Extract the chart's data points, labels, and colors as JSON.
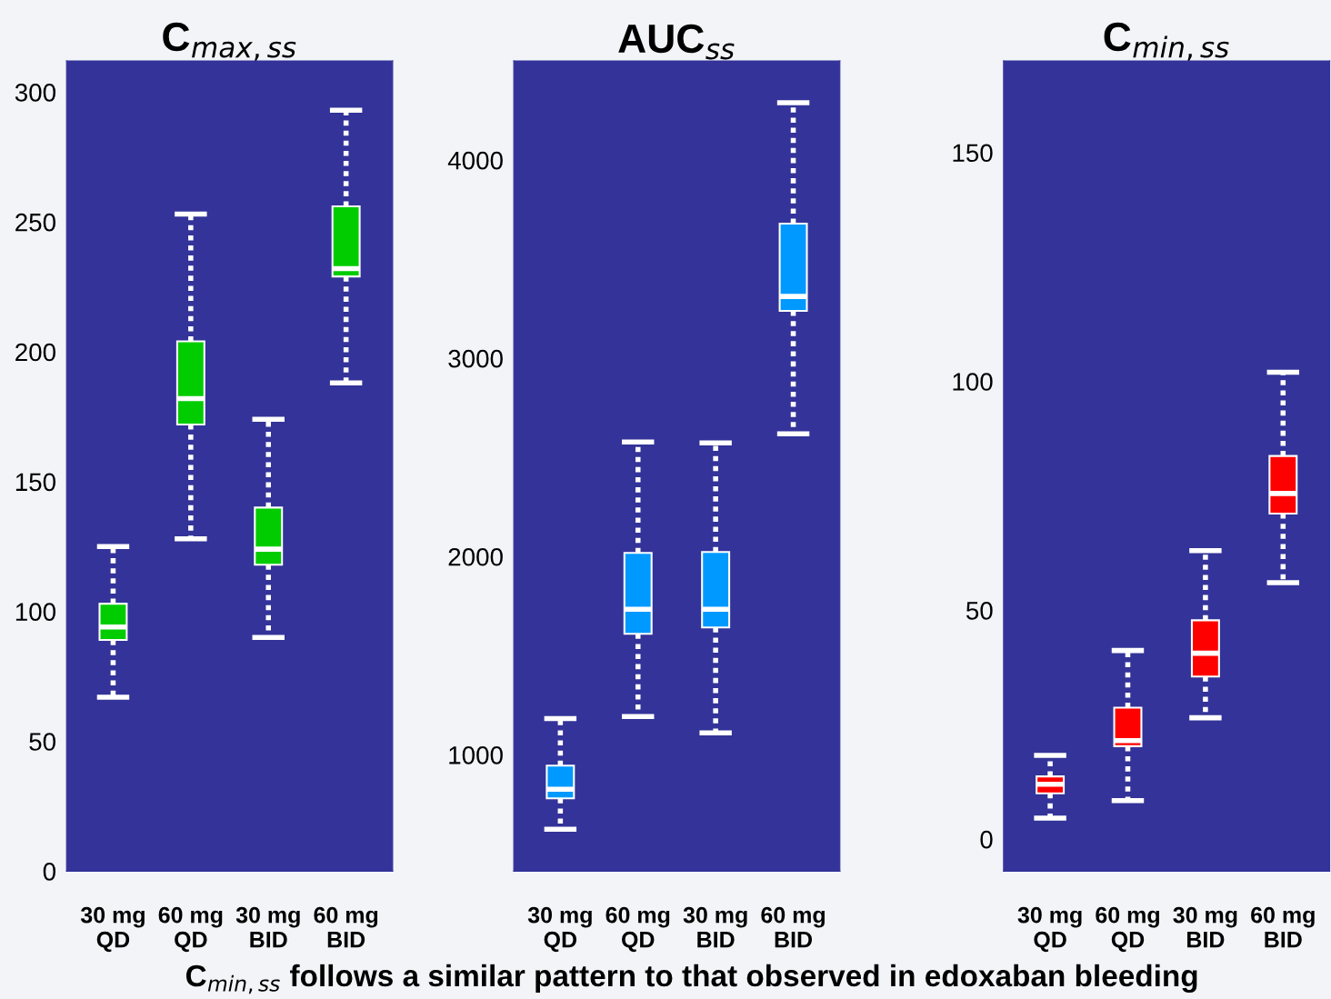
{
  "chart_data": [
    {
      "type": "box",
      "title": "C$_{max,ss}$",
      "categories": [
        "30 mg\nQD",
        "60 mg\nQD",
        "30 mg\nBID",
        "60 mg\nBID"
      ],
      "ylim": [
        0,
        312
      ],
      "yticks": [
        0,
        50,
        100,
        150,
        200,
        250,
        300
      ],
      "series": [
        {
          "color": "#00cc00",
          "boxes": [
            {
              "low": 67,
              "q1": 89,
              "median": 94,
              "q3": 103,
              "high": 125
            },
            {
              "low": 128,
              "q1": 172,
              "median": 182,
              "q3": 204,
              "high": 253
            },
            {
              "low": 90,
              "q1": 118,
              "median": 124,
              "q3": 140,
              "high": 174
            },
            {
              "low": 188,
              "q1": 229,
              "median": 232,
              "q3": 256,
              "high": 293
            }
          ]
        }
      ]
    },
    {
      "type": "box",
      "title": "AUC$_{ss}$",
      "categories": [
        "30 mg\nQD",
        "60 mg\nQD",
        "30 mg\nBID",
        "60 mg\nBID"
      ],
      "ylim": [
        413,
        4500
      ],
      "yticks": [
        1000,
        2000,
        3000,
        4000
      ],
      "series": [
        {
          "color": "#0099ff",
          "boxes": [
            {
              "low": 624,
              "q1": 780,
              "median": 826,
              "q3": 945,
              "high": 1183
            },
            {
              "low": 1193,
              "q1": 1610,
              "median": 1734,
              "q3": 2018,
              "high": 2578
            },
            {
              "low": 1110,
              "q1": 1642,
              "median": 1734,
              "q3": 2023,
              "high": 2573
            },
            {
              "low": 2619,
              "q1": 3239,
              "median": 3312,
              "q3": 3679,
              "high": 4289
            }
          ]
        }
      ]
    },
    {
      "type": "box",
      "title": "C$_{min,ss}$",
      "categories": [
        "30 mg\nQD",
        "60 mg\nQD",
        "30 mg\nBID",
        "60 mg\nBID"
      ],
      "ylim": [
        -7,
        170
      ],
      "yticks": [
        0,
        50,
        100,
        150
      ],
      "annotations": [
        "C$_{min,ss}$ follows a similar pattern to that observed in edoxaban bleeding"
      ],
      "series": [
        {
          "color": "#ff0000",
          "boxes": [
            {
              "low": 4.6,
              "q1": 10,
              "median": 12,
              "q3": 13.7,
              "high": 18.3
            },
            {
              "low": 8.4,
              "q1": 20.3,
              "median": 21.5,
              "q3": 28.7,
              "high": 41.2
            },
            {
              "low": 26.5,
              "q1": 35.5,
              "median": 40.6,
              "q3": 47.8,
              "high": 63
            },
            {
              "low": 56,
              "q1": 71.1,
              "median": 75.5,
              "q3": 83.7,
              "high": 102
            }
          ]
        }
      ]
    }
  ]
}
